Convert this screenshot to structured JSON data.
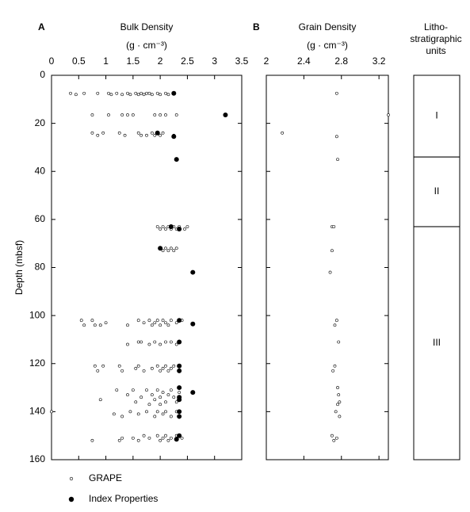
{
  "chart_data": [
    {
      "type": "scatter",
      "label": "A",
      "title": "Bulk Density",
      "x_label": "(g · cm⁻³)",
      "y_label": "Depth (mbsf)",
      "xlim": [
        0,
        3.5
      ],
      "xticks": [
        0,
        0.5,
        1,
        1.5,
        2,
        2.5,
        3,
        3.5
      ],
      "ylim": [
        0,
        160
      ],
      "yticks": [
        0,
        20,
        40,
        60,
        80,
        100,
        120,
        140,
        160
      ],
      "y_inverted": true,
      "series": [
        {
          "name": "GRAPE",
          "color": "#000000",
          "marker": "open",
          "x": [
            0.35,
            0.45,
            0.6,
            0.85,
            1.05,
            1.1,
            1.2,
            1.3,
            1.4,
            1.45,
            1.55,
            1.6,
            1.65,
            1.7,
            1.75,
            1.8,
            1.85,
            1.95,
            2.0,
            2.1,
            2.15,
            0.75,
            1.05,
            1.3,
            1.4,
            1.5,
            1.9,
            2.0,
            2.1,
            2.3,
            0.75,
            0.85,
            0.95,
            1.25,
            1.35,
            1.6,
            1.65,
            1.75,
            1.85,
            1.9,
            1.95,
            2.0,
            2.05,
            2.25,
            1.95,
            2.0,
            2.05,
            2.1,
            2.15,
            2.2,
            2.25,
            2.3,
            2.35,
            2.45,
            2.5,
            2.0,
            2.05,
            2.1,
            2.15,
            2.2,
            2.25,
            2.3,
            0.55,
            0.6,
            0.75,
            0.8,
            0.9,
            1.0,
            1.4,
            1.6,
            1.7,
            1.8,
            1.85,
            1.9,
            1.95,
            2.0,
            2.05,
            2.1,
            2.15,
            2.2,
            2.3,
            2.4,
            1.4,
            1.6,
            1.65,
            1.8,
            1.9,
            2.0,
            2.1,
            2.2,
            2.3,
            0.8,
            0.85,
            0.95,
            1.25,
            1.3,
            1.55,
            1.6,
            1.7,
            1.85,
            1.95,
            2.0,
            2.05,
            2.1,
            2.15,
            2.2,
            2.25,
            0.9,
            1.2,
            1.4,
            1.5,
            1.55,
            1.65,
            1.75,
            1.85,
            1.9,
            1.95,
            2.0,
            2.05,
            2.1,
            2.15,
            2.2,
            2.25,
            2.3,
            2.35,
            1.8,
            2.0,
            0.0,
            1.15,
            1.3,
            1.45,
            1.6,
            1.75,
            1.9,
            1.95,
            2.05,
            2.1,
            2.2,
            2.3,
            0.75,
            1.25,
            1.3,
            1.5,
            1.6,
            1.7,
            1.8,
            1.95,
            2.0,
            2.05,
            2.1,
            2.15,
            2.2,
            2.3,
            2.4
          ],
          "values": [
            7.5,
            8,
            7.5,
            7.5,
            7.5,
            8,
            7.5,
            8,
            7.5,
            8,
            7.5,
            8,
            7.5,
            8,
            7.5,
            7.5,
            8,
            7.5,
            8,
            7.5,
            8,
            16.5,
            16.5,
            16.5,
            16.5,
            16.5,
            16.5,
            16.5,
            16.5,
            16.5,
            24,
            25,
            24,
            24,
            25,
            24,
            25,
            25,
            24,
            25,
            24,
            25,
            24,
            25,
            63,
            64,
            63,
            64,
            63,
            64,
            63,
            64,
            63,
            64,
            63,
            72,
            73,
            72,
            73,
            72,
            73,
            72,
            102,
            104,
            102,
            104,
            104,
            103,
            104,
            102,
            103,
            102,
            104,
            103,
            102,
            104,
            102,
            103,
            104,
            102,
            103,
            102,
            112,
            111,
            111,
            112,
            111,
            112,
            111,
            111,
            112,
            121,
            123,
            121,
            121,
            123,
            122,
            121,
            123,
            122,
            121,
            123,
            122,
            121,
            123,
            122,
            121,
            135,
            131,
            133,
            131,
            136,
            134,
            131,
            133,
            135,
            131,
            134,
            132,
            136,
            133,
            131,
            134,
            136,
            132,
            137,
            137,
            140,
            141,
            142,
            140,
            141,
            140,
            142,
            140,
            141,
            140,
            142,
            140,
            152,
            152,
            151,
            151,
            152,
            150,
            151,
            150,
            152,
            151,
            150,
            152,
            151,
            150,
            151
          ]
        },
        {
          "name": "Index Properties",
          "color": "#000000",
          "marker": "filled",
          "x": [
            2.25,
            3.2,
            1.95,
            2.25,
            2.3,
            2.2,
            2.35,
            2.0,
            2.6,
            2.35,
            2.6,
            2.35,
            2.35,
            2.35,
            2.35,
            2.6,
            2.35,
            2.35,
            2.35,
            2.35,
            2.35,
            2.3
          ],
          "values": [
            7.5,
            16.5,
            24,
            25.5,
            35,
            63,
            64,
            72,
            82,
            102,
            103.5,
            111,
            121,
            123,
            130,
            132,
            134,
            135,
            140,
            142,
            150,
            151.5
          ]
        }
      ]
    },
    {
      "type": "scatter",
      "label": "B",
      "title": "Grain Density",
      "x_label": "(g · cm⁻³)",
      "xlim": [
        2,
        3.3
      ],
      "xticks": [
        2,
        2.4,
        2.8,
        3.2
      ],
      "ylim": [
        0,
        160
      ],
      "yticks": [
        0,
        20,
        40,
        60,
        80,
        100,
        120,
        140,
        160
      ],
      "y_inverted": true,
      "series": [
        {
          "color": "#000000",
          "marker": "open",
          "x": [
            2.75,
            3.3,
            2.17,
            2.75,
            2.76,
            2.7,
            2.72,
            2.7,
            2.68,
            2.75,
            2.73,
            2.77,
            2.73,
            2.71,
            2.76,
            2.77,
            2.78,
            2.76,
            2.74,
            2.78,
            2.7,
            2.75,
            2.72
          ],
          "values": [
            7.5,
            16.5,
            24,
            25.5,
            35,
            63,
            63,
            73,
            82,
            102,
            104,
            111,
            121,
            123,
            130,
            133,
            136,
            137,
            140,
            142,
            150,
            151,
            152
          ]
        }
      ]
    }
  ],
  "units": {
    "header": [
      "Litho-",
      "stratigraphic",
      "units"
    ],
    "items": [
      {
        "label": "I",
        "top": 0,
        "bottom": 34
      },
      {
        "label": "II",
        "top": 34,
        "bottom": 63
      },
      {
        "label": "III",
        "top": 63,
        "bottom": 160
      }
    ]
  }
}
